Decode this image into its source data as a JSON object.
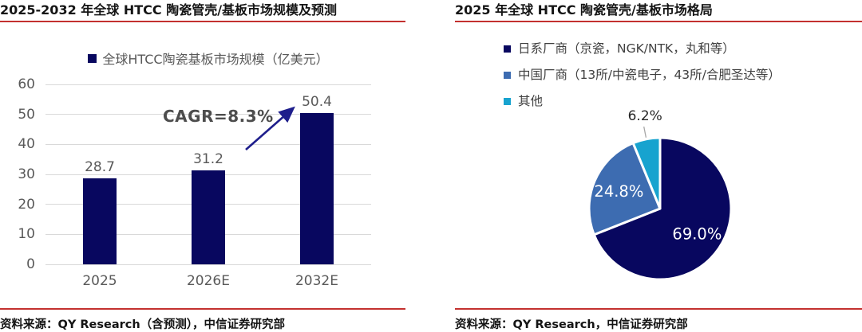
{
  "panels": {
    "left": {
      "source": "资料来源：QY Research（含预测），中信证券研究部"
    },
    "right": {
      "source": "资料来源：QY Research，中信证券研究部"
    }
  },
  "colors": {
    "navy": "#08075f",
    "blue": "#3d6cb1",
    "cyan": "#17a3cf",
    "red_rule": "#c3312f",
    "grid": "#d9d9d9",
    "axis_text": "#595959",
    "annotation_text": "#4d4d4d",
    "arrow": "#1e1e8c",
    "leader_line": "#a6a6a6"
  },
  "chart_data": [
    {
      "type": "bar",
      "title": "2025-2032 年全球 HTCC 陶瓷管壳/基板市场规模及预测",
      "series_name": "全球HTCC陶瓷基板市场规模（亿美元）",
      "categories": [
        "2025",
        "2026E",
        "2032E"
      ],
      "values": [
        28.7,
        31.2,
        50.4
      ],
      "value_labels": [
        "28.7",
        "31.2",
        "50.4"
      ],
      "ylim": [
        0,
        60
      ],
      "ytick_step": 10,
      "yticks": [
        0,
        10,
        20,
        30,
        40,
        50,
        60
      ],
      "bar_color": "#08075f",
      "annotation": "CAGR=8.3%",
      "legend_position": "top",
      "grid": true,
      "xlabel": "",
      "ylabel": ""
    },
    {
      "type": "pie",
      "title": "2025 年全球 HTCC 陶瓷管壳/基板市场格局",
      "labels": [
        "日系厂商（京瓷，NGK/NTK，丸和等）",
        "中国厂商（13所/中瓷电子，43所/合肥圣达等）",
        "其他"
      ],
      "values": [
        69.0,
        24.8,
        6.2
      ],
      "value_labels": [
        "69.0%",
        "24.8%",
        "6.2%"
      ],
      "colors": [
        "#08075f",
        "#3d6cb1",
        "#17a3cf"
      ],
      "start_angle_deg": 0,
      "direction": "clockwise",
      "legend_position": "top-left"
    }
  ]
}
